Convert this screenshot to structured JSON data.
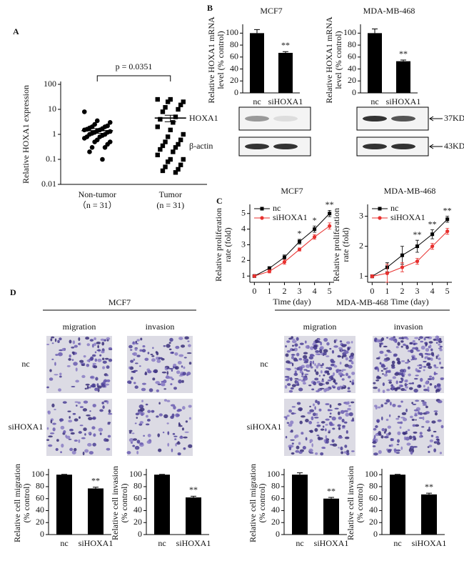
{
  "chart_data": [
    {
      "type": "dotplot",
      "panel": "A",
      "ylabel": [
        "Relative HOXA1 expression"
      ],
      "log": true,
      "ylim": [
        0.01,
        100
      ],
      "yticks": [
        0.01,
        0.1,
        1,
        10,
        100
      ],
      "annotation": "p = 0.0351",
      "markers": [
        "circle",
        "square"
      ],
      "groups": [
        {
          "label": "Non-tumor",
          "sublabel": "（n = 31）",
          "mean": 1.4,
          "sem": 0.3,
          "values": [
            8,
            3.5,
            3,
            2.5,
            2.2,
            2,
            2,
            1.8,
            1.7,
            1.6,
            1.5,
            1.5,
            1.4,
            1.3,
            1.2,
            1.2,
            1.1,
            1,
            1,
            0.9,
            0.8,
            0.8,
            0.7,
            0.6,
            0.5,
            0.5,
            0.4,
            0.3,
            0.3,
            0.2,
            0.1
          ]
        },
        {
          "label": "Tumor",
          "sublabel": "(n = 31)",
          "mean": 4.5,
          "sem": 1.3,
          "values": [
            25,
            25,
            20,
            20,
            15,
            12,
            10,
            8,
            5,
            4,
            3,
            2,
            1.5,
            1,
            0.8,
            0.6,
            0.5,
            0.4,
            0.35,
            0.3,
            0.25,
            0.2,
            0.15,
            0.1,
            0.1,
            0.08,
            0.06,
            0.05,
            0.04,
            0.035,
            0.03
          ]
        }
      ]
    },
    {
      "type": "bar",
      "panel": "B",
      "title": "MCF7",
      "ylabel": [
        "Relative HOXA1 mRNA",
        "level (% control)"
      ],
      "categories": [
        "nc",
        "siHOXA1"
      ],
      "values": [
        100,
        67
      ],
      "errors": [
        6,
        2
      ],
      "significance": [
        null,
        "**"
      ],
      "color": "#000000",
      "ylim": [
        0,
        110
      ],
      "yticks": [
        0,
        20,
        40,
        60,
        80,
        100
      ],
      "blot_rows": [
        "HOXA1",
        "β-actin"
      ]
    },
    {
      "type": "bar",
      "title": "MDA-MB-468",
      "ylabel": [
        "Relative HOXA1 mRNA",
        "level (% control)"
      ],
      "categories": [
        "nc",
        "siHOXA1"
      ],
      "values": [
        100,
        53
      ],
      "errors": [
        7,
        2
      ],
      "significance": [
        null,
        "**"
      ],
      "color": "#000000",
      "ylim": [
        0,
        110
      ],
      "yticks": [
        0,
        20,
        40,
        60,
        80,
        100
      ],
      "blot_markers": [
        "37KD",
        "43KD"
      ]
    },
    {
      "type": "line",
      "panel": "C",
      "title": "MCF7",
      "xlabel": "Time (day)",
      "ylabel": [
        "Relative proliferation",
        "rate (fold)"
      ],
      "x": [
        0,
        1,
        2,
        3,
        4,
        5
      ],
      "xlim": [
        -0.3,
        5.3
      ],
      "xticks": [
        0,
        1,
        2,
        3,
        4,
        5
      ],
      "ylim": [
        0.6,
        5.4
      ],
      "yticks": [
        1,
        2,
        3,
        4,
        5
      ],
      "significance": [
        null,
        null,
        null,
        "*",
        "*",
        "**"
      ],
      "legend": "top-left",
      "series": [
        {
          "name": "nc",
          "color": "#000000",
          "marker": "square",
          "values": [
            1,
            1.5,
            2.2,
            3.2,
            4,
            5
          ],
          "errors": [
            0.05,
            0.1,
            0.15,
            0.15,
            0.2,
            0.2
          ]
        },
        {
          "name": "siHOXA1",
          "color": "#e8312f",
          "marker": "circle",
          "values": [
            1,
            1.3,
            1.9,
            2.7,
            3.5,
            4.2
          ],
          "errors": [
            0.05,
            0.1,
            0.15,
            0.1,
            0.15,
            0.2
          ]
        }
      ]
    },
    {
      "type": "line",
      "title": "MDA-MB-468",
      "xlabel": "Time (day)",
      "ylabel": [
        "Relative proliferation",
        "rate (fold)"
      ],
      "x": [
        0,
        1,
        2,
        3,
        4,
        5
      ],
      "xlim": [
        -0.3,
        5.3
      ],
      "xticks": [
        0,
        1,
        2,
        3,
        4,
        5
      ],
      "ylim": [
        0.8,
        3.3
      ],
      "yticks": [
        1,
        2,
        3
      ],
      "significance": [
        null,
        null,
        null,
        "**",
        "**",
        "**"
      ],
      "legend": "top-left",
      "series": [
        {
          "name": "nc",
          "color": "#000000",
          "marker": "square",
          "values": [
            1,
            1.3,
            1.7,
            2.0,
            2.4,
            2.9
          ],
          "errors": [
            0.05,
            0.15,
            0.3,
            0.2,
            0.15,
            0.1
          ]
        },
        {
          "name": "siHOXA1",
          "color": "#e8312f",
          "marker": "circle",
          "values": [
            1,
            1.1,
            1.3,
            1.5,
            2.0,
            2.5
          ],
          "errors": [
            0.05,
            0.3,
            0.15,
            0.1,
            0.1,
            0.1
          ]
        }
      ]
    },
    {
      "type": "bar",
      "ylabel": [
        "Relative cell migration",
        "(% control)"
      ],
      "categories": [
        "nc",
        "siHOXA1"
      ],
      "values": [
        100,
        77
      ],
      "errors": [
        0.5,
        2
      ],
      "significance": [
        null,
        "**"
      ],
      "color": "#000000",
      "ylim": [
        0,
        105
      ],
      "yticks": [
        0,
        20,
        40,
        60,
        80,
        100
      ]
    },
    {
      "type": "bar",
      "ylabel": [
        "Relative cell invasion",
        "(% control)"
      ],
      "categories": [
        "nc",
        "siHOXA1"
      ],
      "values": [
        100,
        62
      ],
      "errors": [
        0.5,
        2
      ],
      "significance": [
        null,
        "**"
      ],
      "color": "#000000",
      "ylim": [
        0,
        105
      ],
      "yticks": [
        0,
        20,
        40,
        60,
        80,
        100
      ]
    },
    {
      "type": "bar",
      "ylabel": [
        "Relative cell migration",
        "(% control)"
      ],
      "categories": [
        "nc",
        "siHOXA1"
      ],
      "values": [
        100,
        60
      ],
      "errors": [
        3,
        2
      ],
      "significance": [
        null,
        "**"
      ],
      "color": "#000000",
      "ylim": [
        0,
        105
      ],
      "yticks": [
        0,
        20,
        40,
        60,
        80,
        100
      ]
    },
    {
      "type": "bar",
      "ylabel": [
        "Relative cell invasion",
        "(% control)"
      ],
      "categories": [
        "nc",
        "siHOXA1"
      ],
      "values": [
        100,
        67
      ],
      "errors": [
        0.5,
        2
      ],
      "significance": [
        null,
        "**"
      ],
      "color": "#000000",
      "ylim": [
        0,
        105
      ],
      "yticks": [
        0,
        20,
        40,
        60,
        80,
        100
      ]
    }
  ],
  "micrographs": {
    "panel": "D",
    "groups": [
      {
        "title": "MCF7",
        "columns": [
          "migration",
          "invasion"
        ],
        "rows": [
          "nc",
          "siHOXA1"
        ]
      },
      {
        "title": "MDA-MB-468",
        "columns": [
          "migration",
          "invasion"
        ],
        "rows": [
          "nc",
          "siHOXA1"
        ]
      }
    ]
  }
}
